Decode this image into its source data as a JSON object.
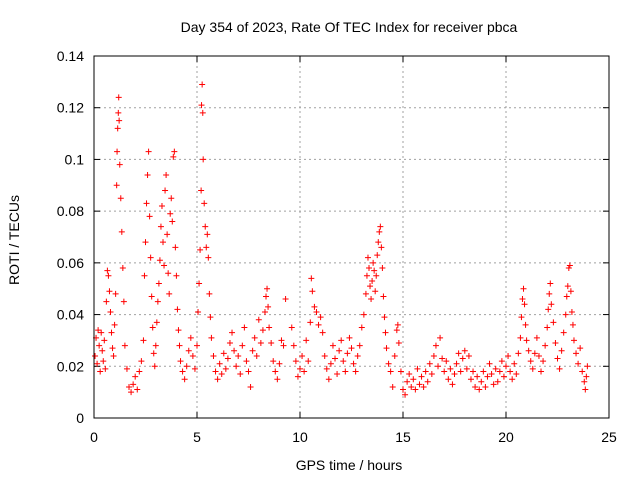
{
  "chart_data": {
    "type": "scatter",
    "title": "Day 354 of 2023, Rate Of TEC Index for receiver pbca",
    "xlabel": "GPS time / hours",
    "ylabel": "ROTI / TECUs",
    "xlim": [
      0,
      25
    ],
    "ylim": [
      0,
      0.14
    ],
    "xticks": [
      0,
      5,
      10,
      15,
      20,
      25
    ],
    "xtick_labels": [
      "0",
      "5",
      "10",
      "15",
      "20",
      "25"
    ],
    "yticks": [
      0,
      0.02,
      0.04,
      0.06,
      0.08,
      0.1,
      0.12,
      0.14
    ],
    "ytick_labels": [
      "0",
      "0.02",
      "0.04",
      "0.06",
      "0.08",
      "0.1",
      "0.12",
      "0.14"
    ],
    "grid": true,
    "marker": "plus",
    "series": [
      {
        "name": "ROTI",
        "color": "#ff0000",
        "points": [
          [
            0.05,
            0.024
          ],
          [
            0.1,
            0.031
          ],
          [
            0.15,
            0.021
          ],
          [
            0.2,
            0.034
          ],
          [
            0.25,
            0.028
          ],
          [
            0.3,
            0.018
          ],
          [
            0.35,
            0.033
          ],
          [
            0.4,
            0.026
          ],
          [
            0.45,
            0.022
          ],
          [
            0.5,
            0.03
          ],
          [
            0.55,
            0.019
          ],
          [
            0.6,
            0.045
          ],
          [
            0.65,
            0.057
          ],
          [
            0.7,
            0.055
          ],
          [
            0.75,
            0.049
          ],
          [
            0.8,
            0.041
          ],
          [
            0.85,
            0.033
          ],
          [
            0.9,
            0.027
          ],
          [
            0.95,
            0.024
          ],
          [
            1.0,
            0.036
          ],
          [
            1.05,
            0.048
          ],
          [
            1.1,
            0.09
          ],
          [
            1.12,
            0.103
          ],
          [
            1.15,
            0.112
          ],
          [
            1.18,
            0.118
          ],
          [
            1.2,
            0.124
          ],
          [
            1.22,
            0.115
          ],
          [
            1.25,
            0.098
          ],
          [
            1.3,
            0.085
          ],
          [
            1.35,
            0.072
          ],
          [
            1.4,
            0.058
          ],
          [
            1.45,
            0.045
          ],
          [
            1.5,
            0.028
          ],
          [
            1.6,
            0.019
          ],
          [
            1.7,
            0.012
          ],
          [
            1.8,
            0.01
          ],
          [
            1.9,
            0.013
          ],
          [
            2.0,
            0.016
          ],
          [
            2.1,
            0.011
          ],
          [
            2.2,
            0.018
          ],
          [
            2.3,
            0.022
          ],
          [
            2.4,
            0.03
          ],
          [
            2.45,
            0.055
          ],
          [
            2.5,
            0.068
          ],
          [
            2.55,
            0.083
          ],
          [
            2.6,
            0.094
          ],
          [
            2.65,
            0.103
          ],
          [
            2.7,
            0.078
          ],
          [
            2.75,
            0.062
          ],
          [
            2.8,
            0.047
          ],
          [
            2.85,
            0.035
          ],
          [
            2.9,
            0.025
          ],
          [
            2.95,
            0.02
          ],
          [
            3.0,
            0.028
          ],
          [
            3.05,
            0.037
          ],
          [
            3.1,
            0.045
          ],
          [
            3.15,
            0.052
          ],
          [
            3.2,
            0.061
          ],
          [
            3.25,
            0.074
          ],
          [
            3.3,
            0.082
          ],
          [
            3.35,
            0.068
          ],
          [
            3.4,
            0.059
          ],
          [
            3.45,
            0.088
          ],
          [
            3.5,
            0.094
          ],
          [
            3.55,
            0.071
          ],
          [
            3.6,
            0.056
          ],
          [
            3.65,
            0.048
          ],
          [
            3.7,
            0.079
          ],
          [
            3.75,
            0.085
          ],
          [
            3.8,
            0.076
          ],
          [
            3.85,
            0.101
          ],
          [
            3.9,
            0.103
          ],
          [
            3.95,
            0.066
          ],
          [
            4.0,
            0.055
          ],
          [
            4.05,
            0.042
          ],
          [
            4.1,
            0.034
          ],
          [
            4.15,
            0.028
          ],
          [
            4.2,
            0.022
          ],
          [
            4.3,
            0.018
          ],
          [
            4.4,
            0.015
          ],
          [
            4.5,
            0.02
          ],
          [
            4.6,
            0.026
          ],
          [
            4.7,
            0.031
          ],
          [
            4.8,
            0.024
          ],
          [
            4.9,
            0.019
          ],
          [
            5.0,
            0.028
          ],
          [
            5.05,
            0.041
          ],
          [
            5.1,
            0.052
          ],
          [
            5.15,
            0.065
          ],
          [
            5.2,
            0.088
          ],
          [
            5.22,
            0.121
          ],
          [
            5.25,
            0.129
          ],
          [
            5.28,
            0.118
          ],
          [
            5.3,
            0.1
          ],
          [
            5.35,
            0.083
          ],
          [
            5.4,
            0.074
          ],
          [
            5.45,
            0.066
          ],
          [
            5.5,
            0.071
          ],
          [
            5.55,
            0.062
          ],
          [
            5.6,
            0.048
          ],
          [
            5.65,
            0.039
          ],
          [
            5.7,
            0.031
          ],
          [
            5.8,
            0.024
          ],
          [
            5.9,
            0.018
          ],
          [
            6.0,
            0.015
          ],
          [
            6.1,
            0.021
          ],
          [
            6.2,
            0.017
          ],
          [
            6.3,
            0.025
          ],
          [
            6.4,
            0.019
          ],
          [
            6.5,
            0.023
          ],
          [
            6.6,
            0.029
          ],
          [
            6.7,
            0.033
          ],
          [
            6.8,
            0.026
          ],
          [
            6.9,
            0.02
          ],
          [
            7.0,
            0.024
          ],
          [
            7.1,
            0.017
          ],
          [
            7.2,
            0.028
          ],
          [
            7.3,
            0.035
          ],
          [
            7.4,
            0.022
          ],
          [
            7.5,
            0.018
          ],
          [
            7.6,
            0.012
          ],
          [
            7.7,
            0.026
          ],
          [
            7.8,
            0.031
          ],
          [
            7.9,
            0.024
          ],
          [
            8.0,
            0.038
          ],
          [
            8.1,
            0.029
          ],
          [
            8.2,
            0.034
          ],
          [
            8.3,
            0.041
          ],
          [
            8.35,
            0.047
          ],
          [
            8.4,
            0.05
          ],
          [
            8.45,
            0.043
          ],
          [
            8.5,
            0.035
          ],
          [
            8.6,
            0.029
          ],
          [
            8.7,
            0.022
          ],
          [
            8.8,
            0.018
          ],
          [
            8.9,
            0.015
          ],
          [
            9.0,
            0.021
          ],
          [
            9.1,
            0.03
          ],
          [
            9.2,
            0.028
          ],
          [
            9.3,
            0.046
          ],
          [
            9.6,
            0.035
          ],
          [
            9.7,
            0.028
          ],
          [
            9.8,
            0.022
          ],
          [
            9.9,
            0.016
          ],
          [
            10.0,
            0.019
          ],
          [
            10.1,
            0.024
          ],
          [
            10.2,
            0.018
          ],
          [
            10.3,
            0.03
          ],
          [
            10.4,
            0.022
          ],
          [
            10.5,
            0.037
          ],
          [
            10.55,
            0.054
          ],
          [
            10.6,
            0.049
          ],
          [
            10.7,
            0.043
          ],
          [
            10.8,
            0.041
          ],
          [
            10.9,
            0.036
          ],
          [
            11.0,
            0.039
          ],
          [
            11.1,
            0.033
          ],
          [
            11.2,
            0.024
          ],
          [
            11.3,
            0.019
          ],
          [
            11.4,
            0.015
          ],
          [
            11.5,
            0.021
          ],
          [
            11.6,
            0.028
          ],
          [
            11.7,
            0.023
          ],
          [
            11.8,
            0.017
          ],
          [
            11.9,
            0.026
          ],
          [
            12.0,
            0.03
          ],
          [
            12.1,
            0.022
          ],
          [
            12.2,
            0.018
          ],
          [
            12.3,
            0.025
          ],
          [
            12.4,
            0.031
          ],
          [
            12.5,
            0.027
          ],
          [
            12.6,
            0.021
          ],
          [
            12.7,
            0.018
          ],
          [
            12.8,
            0.024
          ],
          [
            12.9,
            0.028
          ],
          [
            13.0,
            0.035
          ],
          [
            13.1,
            0.04
          ],
          [
            13.2,
            0.048
          ],
          [
            13.25,
            0.055
          ],
          [
            13.3,
            0.062
          ],
          [
            13.35,
            0.058
          ],
          [
            13.4,
            0.051
          ],
          [
            13.45,
            0.046
          ],
          [
            13.5,
            0.053
          ],
          [
            13.55,
            0.06
          ],
          [
            13.6,
            0.057
          ],
          [
            13.65,
            0.049
          ],
          [
            13.7,
            0.055
          ],
          [
            13.75,
            0.063
          ],
          [
            13.8,
            0.068
          ],
          [
            13.85,
            0.072
          ],
          [
            13.9,
            0.074
          ],
          [
            13.95,
            0.066
          ],
          [
            14.0,
            0.058
          ],
          [
            14.05,
            0.047
          ],
          [
            14.1,
            0.039
          ],
          [
            14.15,
            0.033
          ],
          [
            14.2,
            0.027
          ],
          [
            14.3,
            0.021
          ],
          [
            14.4,
            0.018
          ],
          [
            14.5,
            0.012
          ],
          [
            14.6,
            0.024
          ],
          [
            14.7,
            0.034
          ],
          [
            14.75,
            0.036
          ],
          [
            14.8,
            0.029
          ],
          [
            14.9,
            0.018
          ],
          [
            15.0,
            0.011
          ],
          [
            15.1,
            0.009
          ],
          [
            15.2,
            0.014
          ],
          [
            15.3,
            0.017
          ],
          [
            15.4,
            0.012
          ],
          [
            15.5,
            0.015
          ],
          [
            15.6,
            0.011
          ],
          [
            15.7,
            0.019
          ],
          [
            15.8,
            0.013
          ],
          [
            15.9,
            0.016
          ],
          [
            16.0,
            0.012
          ],
          [
            16.1,
            0.018
          ],
          [
            16.2,
            0.014
          ],
          [
            16.3,
            0.021
          ],
          [
            16.4,
            0.017
          ],
          [
            16.5,
            0.024
          ],
          [
            16.6,
            0.028
          ],
          [
            16.7,
            0.02
          ],
          [
            16.8,
            0.031
          ],
          [
            16.9,
            0.023
          ],
          [
            17.0,
            0.018
          ],
          [
            17.1,
            0.022
          ],
          [
            17.2,
            0.015
          ],
          [
            17.3,
            0.019
          ],
          [
            17.4,
            0.013
          ],
          [
            17.5,
            0.017
          ],
          [
            17.6,
            0.021
          ],
          [
            17.7,
            0.025
          ],
          [
            17.8,
            0.018
          ],
          [
            17.9,
            0.023
          ],
          [
            18.0,
            0.026
          ],
          [
            18.1,
            0.019
          ],
          [
            18.2,
            0.024
          ],
          [
            18.3,
            0.015
          ],
          [
            18.4,
            0.018
          ],
          [
            18.5,
            0.012
          ],
          [
            18.6,
            0.016
          ],
          [
            18.7,
            0.011
          ],
          [
            18.8,
            0.014
          ],
          [
            18.9,
            0.018
          ],
          [
            19.0,
            0.012
          ],
          [
            19.1,
            0.016
          ],
          [
            19.2,
            0.021
          ],
          [
            19.3,
            0.017
          ],
          [
            19.4,
            0.013
          ],
          [
            19.5,
            0.019
          ],
          [
            19.6,
            0.014
          ],
          [
            19.7,
            0.018
          ],
          [
            19.8,
            0.022
          ],
          [
            19.9,
            0.016
          ],
          [
            20.0,
            0.02
          ],
          [
            20.1,
            0.024
          ],
          [
            20.2,
            0.018
          ],
          [
            20.3,
            0.015
          ],
          [
            20.4,
            0.021
          ],
          [
            20.5,
            0.017
          ],
          [
            20.6,
            0.025
          ],
          [
            20.7,
            0.031
          ],
          [
            20.75,
            0.039
          ],
          [
            20.8,
            0.046
          ],
          [
            20.85,
            0.05
          ],
          [
            20.9,
            0.044
          ],
          [
            20.95,
            0.036
          ],
          [
            21.0,
            0.03
          ],
          [
            21.1,
            0.026
          ],
          [
            21.2,
            0.022
          ],
          [
            21.3,
            0.019
          ],
          [
            21.4,
            0.025
          ],
          [
            21.5,
            0.031
          ],
          [
            21.6,
            0.024
          ],
          [
            21.7,
            0.018
          ],
          [
            21.8,
            0.022
          ],
          [
            21.9,
            0.028
          ],
          [
            22.0,
            0.035
          ],
          [
            22.05,
            0.042
          ],
          [
            22.1,
            0.048
          ],
          [
            22.15,
            0.052
          ],
          [
            22.2,
            0.044
          ],
          [
            22.3,
            0.037
          ],
          [
            22.4,
            0.029
          ],
          [
            22.5,
            0.023
          ],
          [
            22.6,
            0.019
          ],
          [
            22.7,
            0.026
          ],
          [
            22.8,
            0.033
          ],
          [
            22.9,
            0.04
          ],
          [
            22.95,
            0.047
          ],
          [
            23.0,
            0.051
          ],
          [
            23.05,
            0.058
          ],
          [
            23.1,
            0.059
          ],
          [
            23.15,
            0.049
          ],
          [
            23.2,
            0.041
          ],
          [
            23.25,
            0.036
          ],
          [
            23.3,
            0.03
          ],
          [
            23.4,
            0.025
          ],
          [
            23.5,
            0.021
          ],
          [
            23.6,
            0.027
          ],
          [
            23.7,
            0.018
          ],
          [
            23.8,
            0.014
          ],
          [
            23.85,
            0.011
          ],
          [
            23.9,
            0.016
          ],
          [
            23.95,
            0.02
          ]
        ]
      }
    ]
  }
}
